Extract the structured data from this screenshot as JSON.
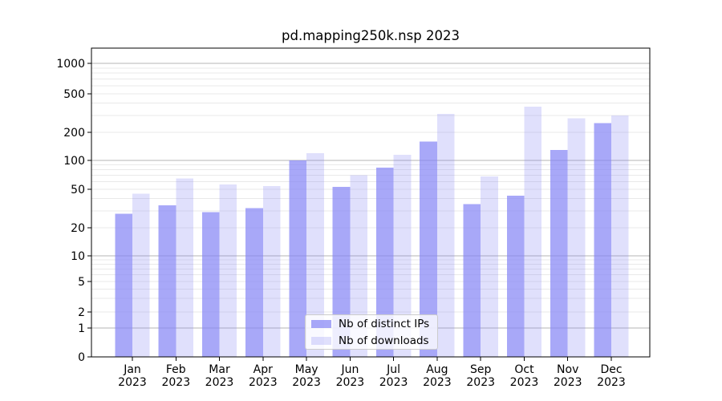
{
  "title": "pd.mapping250k.nsp 2023",
  "chart_data": {
    "type": "bar",
    "categories": [
      "Jan",
      "Feb",
      "Mar",
      "Apr",
      "May",
      "Jun",
      "Jul",
      "Aug",
      "Sep",
      "Oct",
      "Nov",
      "Dec"
    ],
    "category_year": "2023",
    "series": [
      {
        "name": "Nb of distinct IPs",
        "color": "rgba(131,131,245,0.7)",
        "values": [
          28,
          34,
          29,
          32,
          100,
          53,
          84,
          160,
          35,
          43,
          130,
          250
        ]
      },
      {
        "name": "Nb of downloads",
        "color": "rgba(131,131,245,0.25)",
        "values": [
          45,
          65,
          56,
          54,
          120,
          70,
          115,
          310,
          68,
          370,
          280,
          300
        ]
      }
    ],
    "yscale": "symlog",
    "yticks": [
      0,
      1,
      2,
      5,
      10,
      20,
      50,
      100,
      200,
      500,
      1000
    ],
    "ylim": [
      0,
      1400
    ],
    "grid": true,
    "legend_position": "lower center"
  },
  "colors": {
    "bar_base": "#8383f5",
    "grid_major": "#b4b4b4",
    "grid_minor": "#e9e9e9",
    "spine": "#000000",
    "tick_text": "#000000",
    "legend_border": "#cccccc",
    "legend_bg": "rgba(255,255,255,0.8)"
  }
}
